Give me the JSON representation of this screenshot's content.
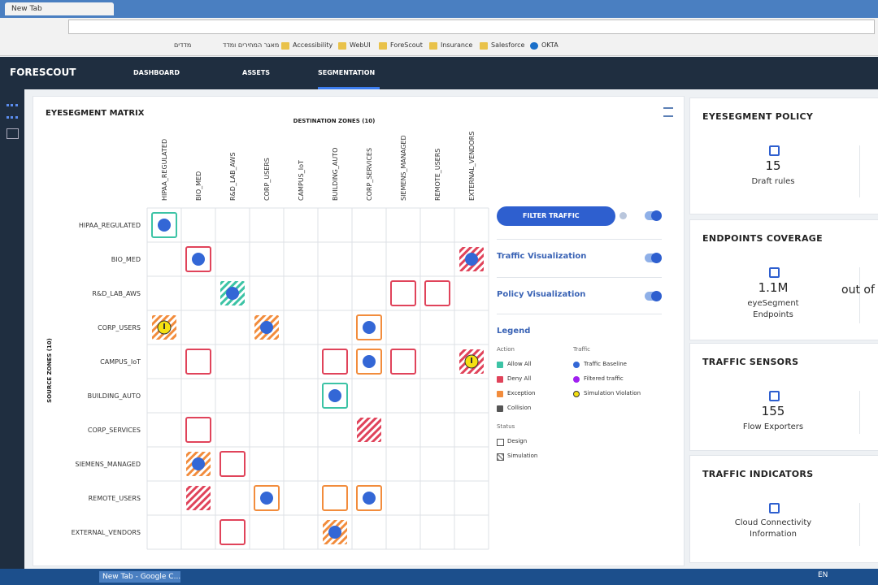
{
  "browser": {
    "tab_title": "New Tab",
    "bookmarks": [
      "מדדים",
      "מאגר המחירים ומדד",
      "Accessibility",
      "WebUI",
      "ForeScout",
      "Insurance",
      "Salesforce",
      "OKTA"
    ]
  },
  "app": {
    "logo": "FORESCOUT",
    "nav": [
      "DASHBOARD",
      "ASSETS",
      "SEGMENTATION"
    ]
  },
  "matrix": {
    "title": "EYESEGMENT MATRIX",
    "destination_label": "DESTINATION ZONES (10)",
    "source_label": "SOURCE ZONES (10)",
    "columns": [
      "HIPAA_REGULATED",
      "BIO_MED",
      "R&D_LAB_AWS",
      "CORP_USERS",
      "CAMPUS_IoT",
      "BUILDING_AUTO",
      "CORP_SERVICES",
      "SIEMENS_MANAGED",
      "REMOTE_USERS",
      "EXTERNAL_VENDORS"
    ],
    "rows": [
      "HIPAA_REGULATED",
      "BIO_MED",
      "R&D_LAB_AWS",
      "CORP_USERS",
      "CAMPUS_IoT",
      "BUILDING_AUTO",
      "CORP_SERVICES",
      "SIEMENS_MANAGED",
      "REMOTE_USERS",
      "EXTERNAL_VENDORS"
    ]
  },
  "controls": {
    "filter": "FILTER TRAFFIC",
    "toggles": [
      "Traffic Visualization",
      "Policy Visualization"
    ],
    "legend": {
      "title": "Legend",
      "action_title": "Action",
      "actions": [
        "Allow All",
        "Deny All",
        "Exception",
        "Collision"
      ],
      "traffic_title": "Traffic",
      "traffic": [
        "Traffic Baseline",
        "Filtered traffic",
        "Simulation Violation"
      ],
      "status_title": "Status",
      "status": [
        "Design",
        "Simulation"
      ]
    }
  },
  "cards": [
    {
      "title": "EYESEGMENT POLICY",
      "value": 15,
      "label": "Draft rules"
    },
    {
      "title": "ENDPOINTS COVERAGE",
      "value": "1.1M",
      "label": "eyeSegment Endpoints",
      "extra": "out of"
    },
    {
      "title": "TRAFFIC SENSORS",
      "value": 155,
      "label": "Flow Exporters"
    },
    {
      "title": "TRAFFIC INDICATORS",
      "label": "Cloud Connectivity Information"
    }
  ],
  "taskbar": {
    "window": "New Tab - Google C...",
    "lang": "EN"
  }
}
